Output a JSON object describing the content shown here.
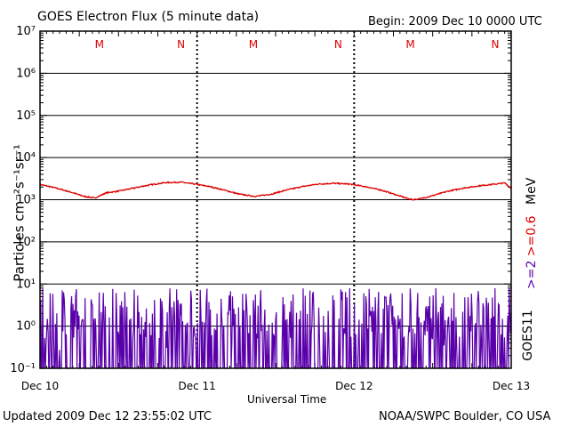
{
  "header": {
    "title": "GOES Electron Flux (5 minute data)",
    "begin": "Begin: 2009 Dec 10 0000 UTC"
  },
  "footer": {
    "updated": "Updated 2009 Dec 12 23:55:02 UTC",
    "credit": "NOAA/SWPC Boulder, CO USA"
  },
  "axes": {
    "ylabel": "Particles cm⁻²s⁻¹sr⁻¹",
    "xlabel": "Universal Time",
    "satellite": "GOES11",
    "units_label": "MeV",
    "series_label_high": ">=2",
    "series_label_low": ">=0.6"
  },
  "chart_data": {
    "type": "line",
    "title": "GOES Electron Flux (5 minute data)",
    "xlabel": "Universal Time",
    "ylabel": "Particles cm-2 s-1 sr-1",
    "yscale": "log",
    "ylim": [
      0.1,
      10000000
    ],
    "xlim_days": [
      0,
      3
    ],
    "y_tick_labels": [
      "10⁻¹",
      "10⁰",
      "10¹",
      "10²",
      "10³",
      "10⁴",
      "10⁵",
      "10⁶",
      "10⁷"
    ],
    "y_tick_exponents": [
      -1,
      0,
      1,
      2,
      3,
      4,
      5,
      6,
      7
    ],
    "x_tick_labels": [
      "Dec 10",
      "Dec 11",
      "Dec 12",
      "Dec 13"
    ],
    "x_tick_days": [
      0,
      1,
      2,
      3
    ],
    "threshold": 1000,
    "markers": [
      {
        "label": "M",
        "day": 0.48
      },
      {
        "label": "N",
        "day": 1.0
      },
      {
        "label": "M",
        "day": 1.46
      },
      {
        "label": "N",
        "day": 2.0
      },
      {
        "label": "M",
        "day": 2.46
      },
      {
        "label": "N",
        "day": 3.0
      }
    ],
    "series": [
      {
        "name": ">=0.6 MeV",
        "color": "#dd0000",
        "x_days": [
          0,
          0.1,
          0.2,
          0.28,
          0.35,
          0.42,
          0.5,
          0.6,
          0.7,
          0.8,
          0.9,
          1.0,
          1.08,
          1.17,
          1.27,
          1.37,
          1.47,
          1.57,
          1.67,
          1.77,
          1.87,
          1.97,
          2.07,
          2.17,
          2.27,
          2.33,
          2.37,
          2.42,
          2.5,
          2.6,
          2.7,
          2.8,
          2.9,
          2.96,
          3.0
        ],
        "values": [
          2300,
          1900,
          1500,
          1200,
          1100,
          1450,
          1600,
          1900,
          2250,
          2550,
          2600,
          2300,
          2050,
          1700,
          1350,
          1200,
          1350,
          1700,
          2050,
          2350,
          2450,
          2350,
          2050,
          1700,
          1300,
          1100,
          1000,
          1050,
          1250,
          1600,
          1900,
          2150,
          2350,
          2500,
          1850
        ]
      },
      {
        "name": ">=2 MeV",
        "color": "#5a00aa",
        "baseline": 0.1,
        "spike_range": [
          0.5,
          8
        ]
      }
    ]
  }
}
